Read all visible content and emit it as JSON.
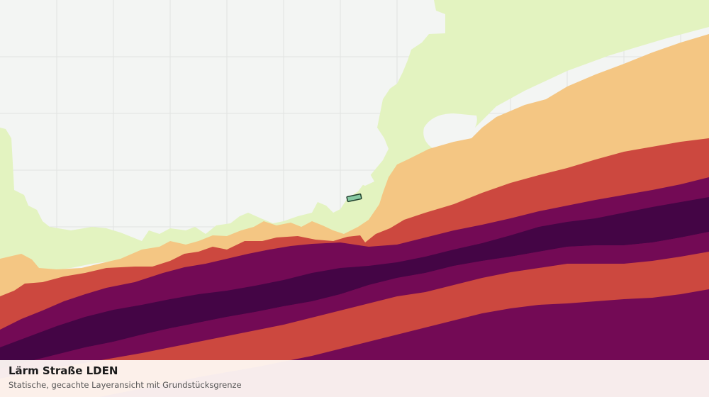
{
  "map": {
    "layer_title": "Lärm Straße LDEN",
    "layer_subtitle": "Statische, gecachte Layeransicht mit Grundstücksgrenze",
    "colors": {
      "background": "#f3f5f3",
      "grid": "#e2e4e2",
      "band_lowest": "#e3f3c0",
      "band_low": "#f4c683",
      "band_mid": "#cc483f",
      "band_high": "#730a55",
      "band_highest": "#440545",
      "parcel_fill": "#86c9a2",
      "parcel_stroke": "#1f3d2b"
    },
    "icons": {
      "parcel": "parcel-boundary-icon"
    }
  }
}
